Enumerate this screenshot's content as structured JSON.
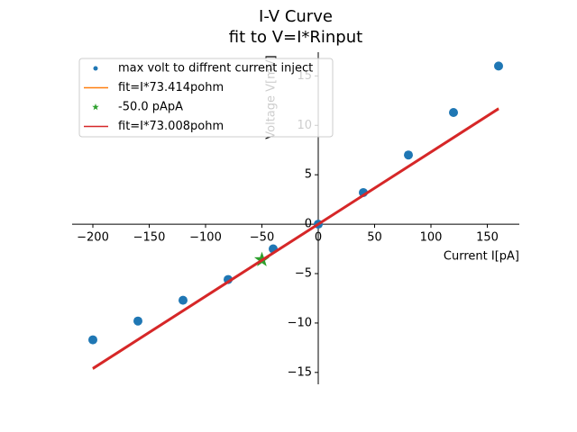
{
  "chart_data": {
    "type": "scatter",
    "title": [
      "I-V Curve",
      "fit to V=I*Rinput"
    ],
    "x_label": "Current I[pA]",
    "y_label": "Voltage V[mV]",
    "xlim": [
      -218.4,
      178.4
    ],
    "ylim": [
      -16.2,
      17.4
    ],
    "xticks": [
      {
        "value": -200,
        "label": "−200"
      },
      {
        "value": -150,
        "label": "−150"
      },
      {
        "value": -100,
        "label": "−100"
      },
      {
        "value": -50,
        "label": "−50"
      },
      0,
      50,
      100,
      150
    ],
    "yticks": [
      {
        "value": -15,
        "label": "−15"
      },
      {
        "value": -10,
        "label": "−10"
      },
      {
        "value": -5,
        "label": "−5"
      },
      0,
      5,
      10,
      15
    ],
    "legend": "upper left",
    "series": [
      {
        "name": "max volt to diffrent current inject",
        "type": "scatter",
        "marker": "circle",
        "color": "#1f77b4",
        "x": [
          -200,
          -160,
          -120,
          -80,
          -40,
          0,
          40,
          80,
          120,
          160
        ],
        "values": [
          -11.7,
          -9.8,
          -7.7,
          -5.6,
          -2.5,
          0,
          3.2,
          7.0,
          11.3,
          16.0
        ]
      },
      {
        "name": "fit=I*73.414pohm",
        "type": "line",
        "color": "#ff7f0e",
        "x": [
          -200,
          160
        ],
        "values": [
          -14.68,
          11.75
        ]
      },
      {
        "name": "-50.0 pApA",
        "type": "scatter",
        "marker": "star",
        "color": "#2ca02c",
        "x": [
          -50
        ],
        "values": [
          -3.6
        ]
      },
      {
        "name": "fit=I*73.008pohm",
        "type": "line",
        "color": "#d62728",
        "x": [
          -200,
          160
        ],
        "values": [
          -14.6,
          11.68
        ]
      }
    ]
  }
}
